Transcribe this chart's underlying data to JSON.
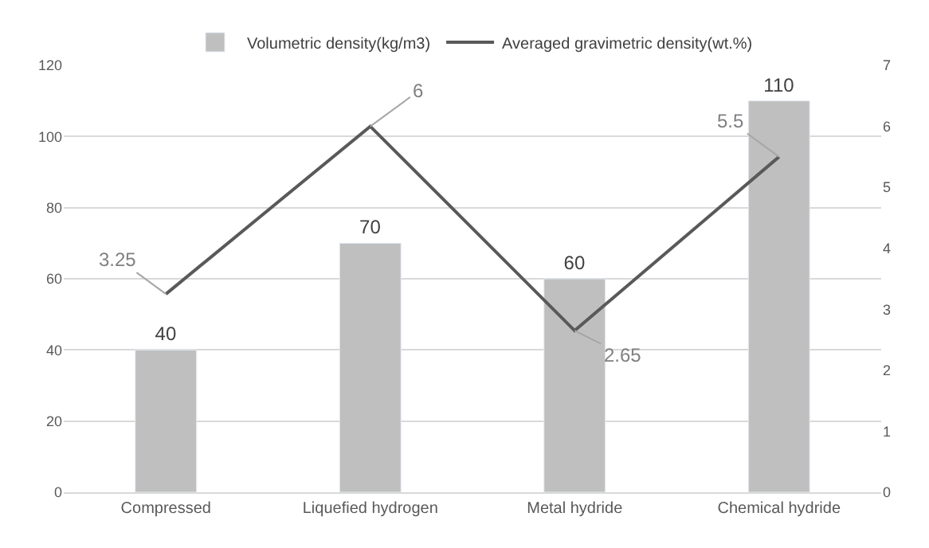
{
  "chart_data": {
    "type": "bar",
    "categories": [
      "Compressed",
      "Liquefied hydrogen",
      "Metal hydride",
      "Chemical hydride"
    ],
    "series": [
      {
        "name": "Volumetric density(kg/m3)",
        "color": "#bfbfbf",
        "values": [
          40,
          70,
          60,
          110
        ]
      },
      {
        "name": "Averaged gravimetric density(wt.%)",
        "type": "line",
        "axis": "y2",
        "color": "#595959",
        "values": [
          3.25,
          6,
          2.65,
          5.5
        ]
      }
    ],
    "ylim": [
      0,
      120
    ],
    "yticks": [
      0,
      20,
      40,
      60,
      80,
      100,
      120
    ],
    "y2lim": [
      0,
      7
    ],
    "y2ticks": [
      0,
      1,
      2,
      3,
      4,
      5,
      6,
      7
    ],
    "grid": "y",
    "legend": "top",
    "data_labels": true,
    "marker": "none",
    "line_style": "solid"
  }
}
